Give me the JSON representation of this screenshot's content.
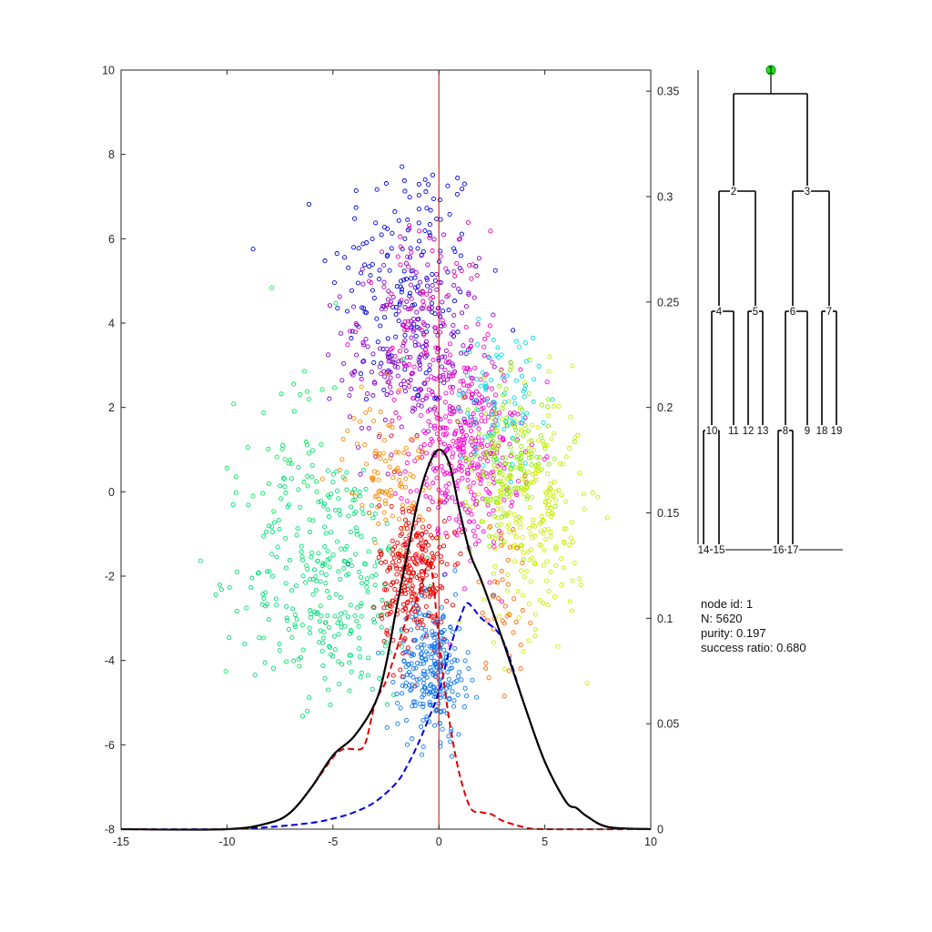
{
  "chart_data": [
    {
      "type": "scatter",
      "title": "",
      "xlabel": "",
      "ylabel": "",
      "xlim": [
        -15,
        10
      ],
      "ylim": [
        -8,
        10
      ],
      "y2lim": [
        0,
        0.36
      ],
      "xticks": [
        "-15",
        "-10",
        "-5",
        "0",
        "5",
        "10"
      ],
      "yticks": [
        "-8",
        "-6",
        "-4",
        "-2",
        "0",
        "2",
        "4",
        "6",
        "8",
        "10"
      ],
      "y2ticks": [
        "0",
        "0.05",
        "0.1",
        "0.15",
        "0.2",
        "0.25",
        "0.3",
        "0.35"
      ],
      "grid": false,
      "vertical_line_x": 0,
      "vertical_line_color": "#dd0000",
      "clusters": [
        {
          "color": "#0000dd",
          "center": [
            -1.5,
            5.0
          ],
          "std": [
            1.8,
            1.6
          ],
          "count": 180
        },
        {
          "color": "#8800cc",
          "center": [
            -1.2,
            3.2
          ],
          "std": [
            1.6,
            1.2
          ],
          "count": 220
        },
        {
          "color": "#dd00aa",
          "center": [
            -0.8,
            4.2
          ],
          "std": [
            1.5,
            1.0
          ],
          "count": 90
        },
        {
          "color": "#ff00cc",
          "center": [
            1.2,
            1.0
          ],
          "std": [
            1.3,
            1.2
          ],
          "count": 380
        },
        {
          "color": "#00dd77",
          "center": [
            -5.0,
            -2.0
          ],
          "std": [
            2.0,
            1.5
          ],
          "count": 300
        },
        {
          "color": "#00ee55",
          "center": [
            -7.0,
            0.5
          ],
          "std": [
            1.5,
            2.0
          ],
          "count": 50
        },
        {
          "color": "#88ee00",
          "center": [
            3.2,
            0.8
          ],
          "std": [
            1.0,
            0.9
          ],
          "count": 160
        },
        {
          "color": "#ccee00",
          "center": [
            4.5,
            -0.5
          ],
          "std": [
            1.2,
            1.4
          ],
          "count": 230
        },
        {
          "color": "#00dddd",
          "center": [
            2.8,
            2.2
          ],
          "std": [
            1.0,
            0.8
          ],
          "count": 80
        },
        {
          "color": "#ff8800",
          "center": [
            -2.5,
            0.5
          ],
          "std": [
            1.0,
            0.8
          ],
          "count": 100
        },
        {
          "color": "#ff6600",
          "center": [
            3.0,
            -2.5
          ],
          "std": [
            0.6,
            1.0
          ],
          "count": 40
        },
        {
          "color": "#ee0000",
          "center": [
            -1.2,
            -2.0
          ],
          "std": [
            0.8,
            0.9
          ],
          "count": 260
        },
        {
          "color": "#1177ee",
          "center": [
            -0.3,
            -4.2
          ],
          "std": [
            0.8,
            0.8
          ],
          "count": 260
        }
      ],
      "curves": [
        {
          "style": "solid",
          "color": "#000000",
          "x": [
            -15,
            -10,
            -8,
            -7,
            -6,
            -5,
            -4,
            -3,
            -2.5,
            -2,
            -1.5,
            -1,
            -0.5,
            0,
            0.5,
            1,
            1.5,
            2,
            3,
            4,
            5,
            6,
            6.5,
            7,
            8,
            10
          ],
          "y": [
            0,
            0,
            0.003,
            0.008,
            0.02,
            0.035,
            0.044,
            0.06,
            0.078,
            0.105,
            0.13,
            0.155,
            0.172,
            0.18,
            0.173,
            0.15,
            0.13,
            0.118,
            0.09,
            0.06,
            0.032,
            0.013,
            0.01,
            0.006,
            0.001,
            0
          ]
        },
        {
          "style": "dashed",
          "color": "#dd0000",
          "x": [
            -15,
            -10,
            -8,
            -7,
            -6,
            -5,
            -4.5,
            -4,
            -3.5,
            -3,
            -2.5,
            -2,
            -1.5,
            -1,
            -0.7,
            -0.5,
            -0.3,
            0,
            0.3,
            0.6,
            1,
            1.5,
            2,
            2.5,
            3,
            4,
            5,
            10
          ],
          "y": [
            0,
            0,
            0.003,
            0.008,
            0.02,
            0.034,
            0.038,
            0.038,
            0.04,
            0.06,
            0.07,
            0.085,
            0.1,
            0.11,
            0.12,
            0.128,
            0.12,
            0.09,
            0.065,
            0.045,
            0.025,
            0.01,
            0.008,
            0.007,
            0.004,
            0.001,
            0,
            0
          ]
        },
        {
          "style": "dashed",
          "color": "#0000dd",
          "x": [
            -15,
            -10,
            -8,
            -6,
            -5,
            -4,
            -3,
            -2,
            -1.5,
            -1,
            -0.5,
            0,
            0.5,
            1,
            1.3,
            1.6,
            2,
            3,
            4,
            5,
            6,
            6.5,
            7,
            8,
            10
          ],
          "y": [
            0,
            0,
            0.001,
            0.003,
            0.005,
            0.008,
            0.013,
            0.022,
            0.03,
            0.04,
            0.052,
            0.065,
            0.085,
            0.1,
            0.107,
            0.105,
            0.1,
            0.09,
            0.06,
            0.032,
            0.013,
            0.01,
            0.006,
            0.001,
            0
          ]
        }
      ]
    },
    {
      "type": "tree",
      "nodes": [
        {
          "id": "1",
          "label": "1",
          "highlight": true,
          "highlight_color": "#22dd22"
        },
        {
          "id": "2",
          "label": "2"
        },
        {
          "id": "3",
          "label": "3"
        },
        {
          "id": "4",
          "label": "4"
        },
        {
          "id": "5",
          "label": "5"
        },
        {
          "id": "6",
          "label": "6"
        },
        {
          "id": "7",
          "label": "7"
        },
        {
          "id": "8",
          "label": "8"
        },
        {
          "id": "9",
          "label": "9"
        },
        {
          "id": "10",
          "label": "10"
        },
        {
          "id": "11",
          "label": "11"
        },
        {
          "id": "12",
          "label": "12"
        },
        {
          "id": "13",
          "label": "13"
        },
        {
          "id": "14",
          "label": "14"
        },
        {
          "id": "15",
          "label": "15"
        },
        {
          "id": "16",
          "label": "16"
        },
        {
          "id": "17",
          "label": "17"
        },
        {
          "id": "18",
          "label": "18"
        },
        {
          "id": "19",
          "label": "19"
        }
      ],
      "edges": [
        [
          "1",
          "2"
        ],
        [
          "1",
          "3"
        ],
        [
          "2",
          "4"
        ],
        [
          "2",
          "5"
        ],
        [
          "3",
          "6"
        ],
        [
          "3",
          "7"
        ],
        [
          "4",
          "10"
        ],
        [
          "4",
          "11"
        ],
        [
          "5",
          "12"
        ],
        [
          "5",
          "13"
        ],
        [
          "6",
          "8"
        ],
        [
          "6",
          "9"
        ],
        [
          "7",
          "18"
        ],
        [
          "7",
          "19"
        ],
        [
          "10",
          "14"
        ],
        [
          "10",
          "15"
        ],
        [
          "8",
          "16"
        ],
        [
          "8",
          "17"
        ]
      ]
    }
  ],
  "info": {
    "node_id": "node id: 1",
    "n": "N: 5620",
    "purity": "purity: 0.197",
    "success_ratio": "success ratio: 0.680"
  }
}
